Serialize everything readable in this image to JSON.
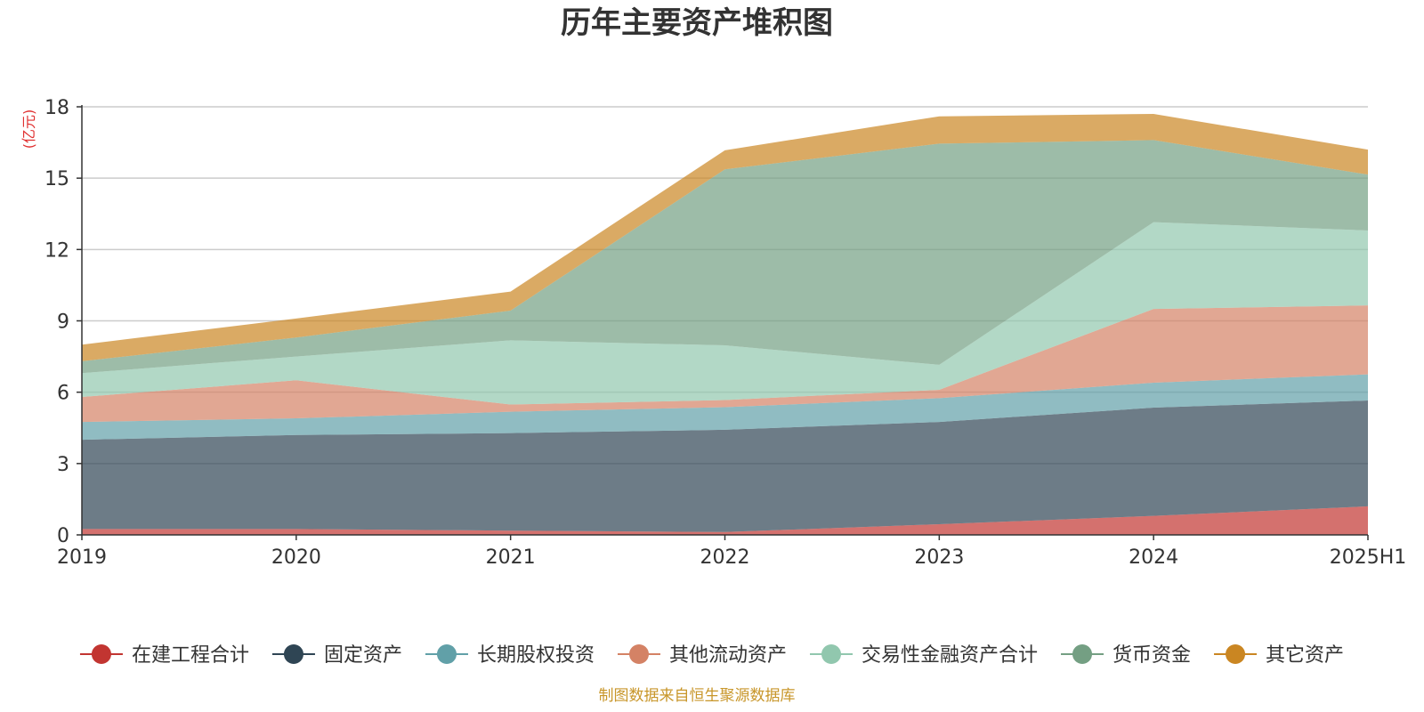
{
  "chart_data": {
    "type": "area",
    "stacked": true,
    "title": "历年主要资产堆积图",
    "unit_label": "(亿元)",
    "source": "制图数据来自恒生聚源数据库",
    "categories": [
      "2019",
      "2020",
      "2021",
      "2022",
      "2023",
      "2024",
      "2025H1"
    ],
    "ylim": [
      0,
      18
    ],
    "yticks": [
      0,
      3,
      6,
      9,
      12,
      15,
      18
    ],
    "grid": true,
    "legend_position": "bottom",
    "series": [
      {
        "name": "在建工程合计",
        "color": "#c23531",
        "values": [
          0.25,
          0.25,
          0.18,
          0.12,
          0.45,
          0.8,
          1.2
        ]
      },
      {
        "name": "固定资产",
        "color": "#2f4554",
        "values": [
          3.75,
          3.95,
          4.1,
          4.3,
          4.3,
          4.55,
          4.45
        ]
      },
      {
        "name": "长期股权投资",
        "color": "#61a0a8",
        "values": [
          0.75,
          0.7,
          0.9,
          0.95,
          1.0,
          1.05,
          1.1
        ]
      },
      {
        "name": "其他流动资产",
        "color": "#d48265",
        "values": [
          1.05,
          1.6,
          0.3,
          0.3,
          0.35,
          3.1,
          2.9
        ]
      },
      {
        "name": "交易性金融资产合计",
        "color": "#91c7ae",
        "values": [
          1.0,
          1.0,
          2.7,
          2.3,
          1.05,
          3.65,
          3.15
        ]
      },
      {
        "name": "货币资金",
        "color": "#749f83",
        "values": [
          0.5,
          0.8,
          1.25,
          7.4,
          9.3,
          3.45,
          2.35
        ]
      },
      {
        "name": "其它资产",
        "color": "#ca8622",
        "values": [
          0.7,
          0.8,
          0.8,
          0.8,
          1.15,
          1.1,
          1.05
        ]
      }
    ]
  }
}
